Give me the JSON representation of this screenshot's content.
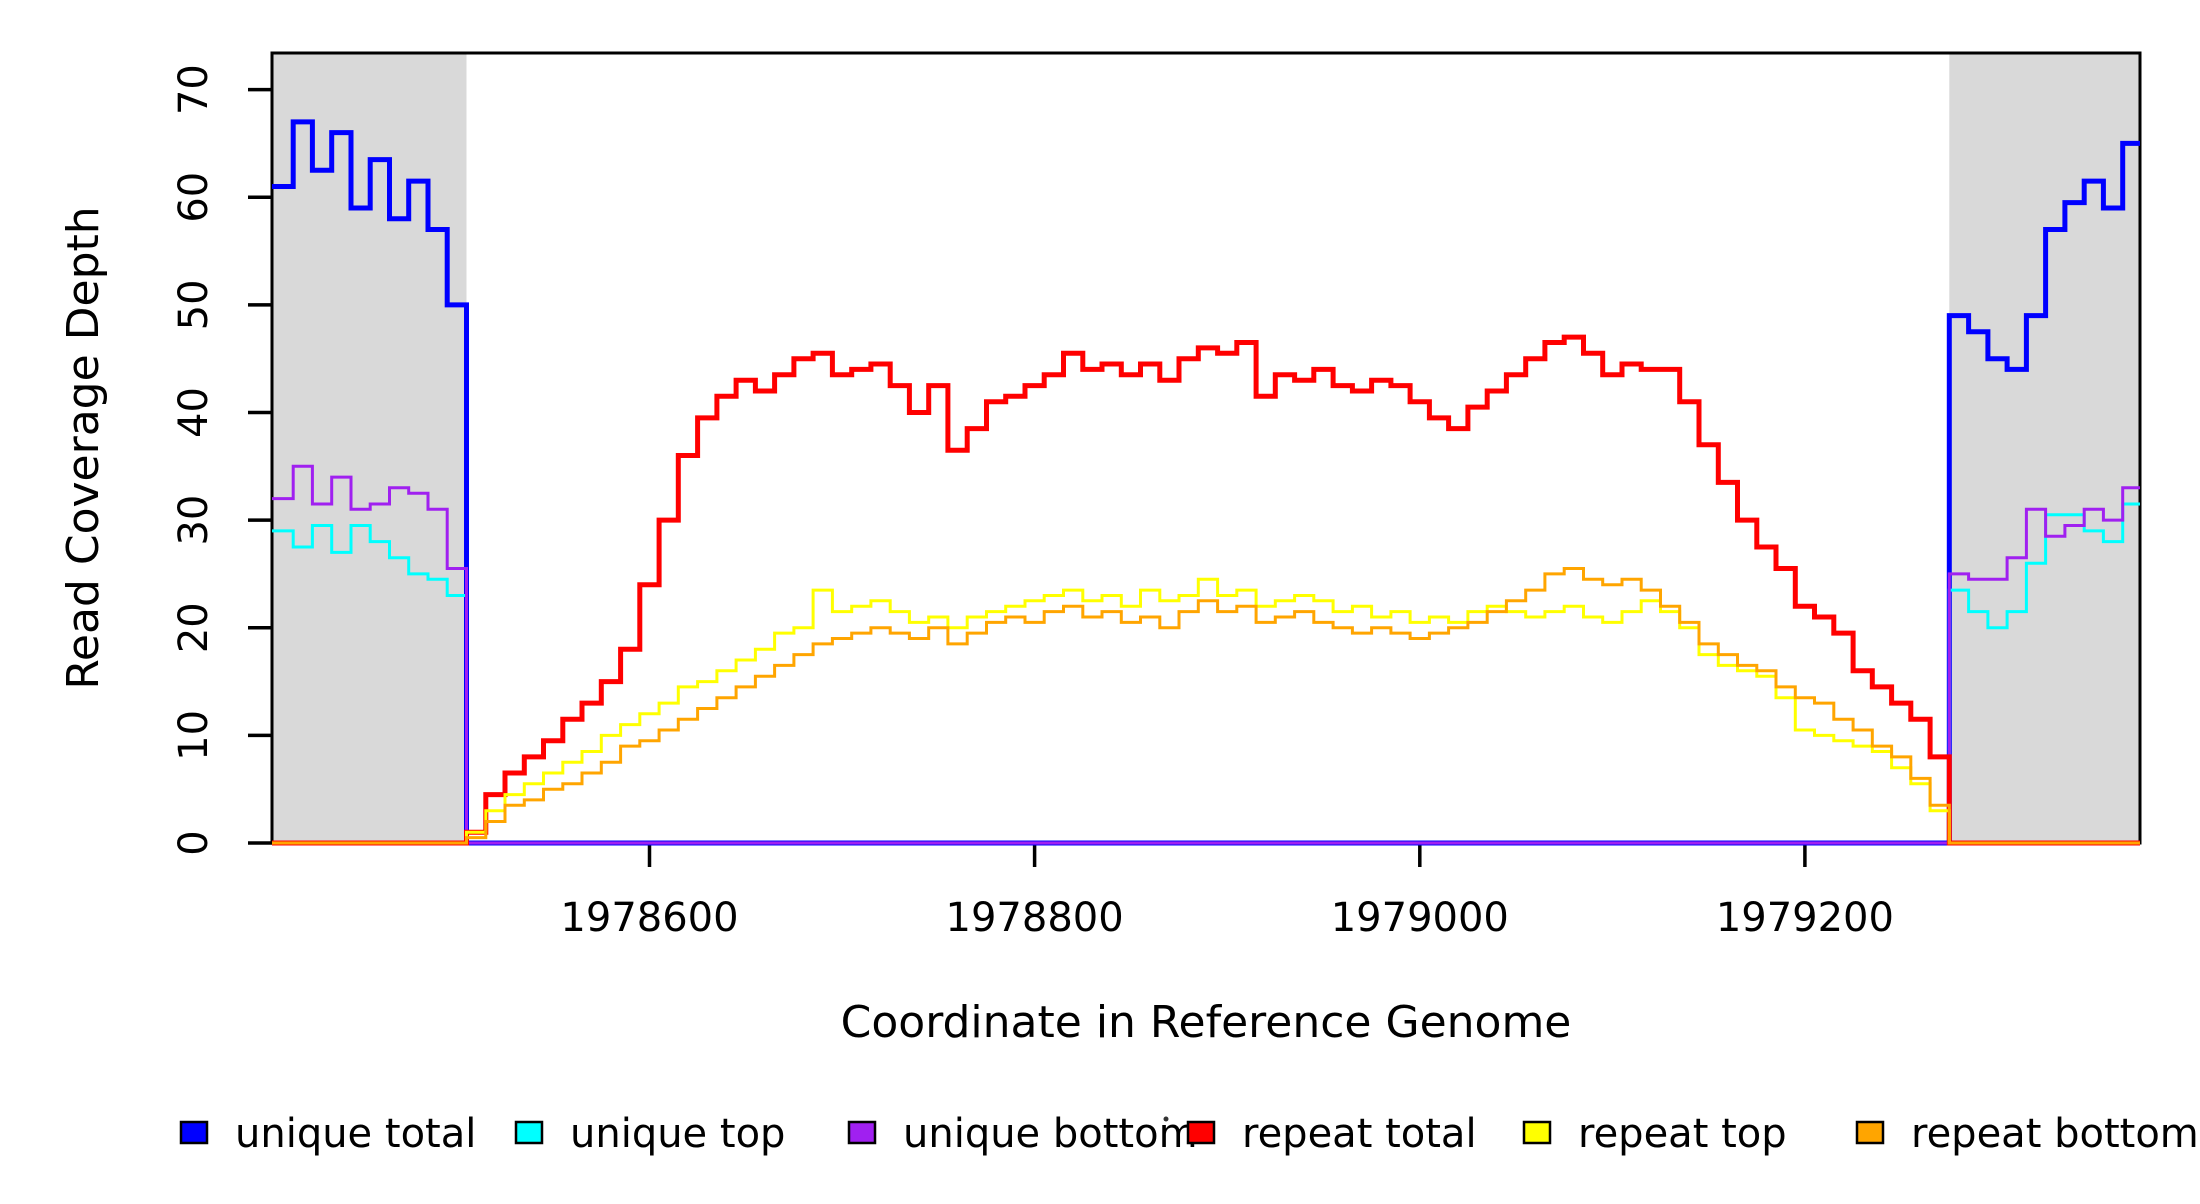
{
  "axes": {
    "x_title": "Coordinate in Reference Genome",
    "y_title": "Read Coverage Depth"
  },
  "chart_data": {
    "type": "line",
    "subtype": "step-after",
    "xlabel": "Coordinate in Reference Genome",
    "ylabel": "Read Coverage Depth",
    "xlim": [
      1978404,
      1979374
    ],
    "ylim": [
      0,
      73.4
    ],
    "x_ticks": [
      1978600,
      1978800,
      1979000,
      1979200
    ],
    "x_tick_labels": [
      "1978600",
      "1978800",
      "1979000",
      "1979200"
    ],
    "y_ticks": [
      0,
      10,
      20,
      30,
      40,
      50,
      60,
      70
    ],
    "y_tick_labels": [
      "0",
      "10",
      "20",
      "30",
      "40",
      "50",
      "60",
      "70"
    ],
    "grid": false,
    "legend_position": "bottom",
    "shaded_regions": [
      {
        "name": "unique-flank-left",
        "x0": 1978404,
        "x1": 1978505,
        "color": "#D9D9D9"
      },
      {
        "name": "unique-flank-right",
        "x0": 1979275,
        "x1": 1979374,
        "color": "#D9D9D9"
      }
    ],
    "x_start": 1978405,
    "x_step": 10,
    "n_points": 97,
    "series": [
      {
        "name": "unique total",
        "color": "#0000FF",
        "line_width": 5,
        "values": [
          61,
          67,
          62.5,
          66,
          59,
          63.5,
          58,
          61.5,
          57,
          50,
          0,
          0,
          0,
          0,
          0,
          0,
          0,
          0,
          0,
          0,
          0,
          0,
          0,
          0,
          0,
          0,
          0,
          0,
          0,
          0,
          0,
          0,
          0,
          0,
          0,
          0,
          0,
          0,
          0,
          0,
          0,
          0,
          0,
          0,
          0,
          0,
          0,
          0,
          0,
          0,
          0,
          0,
          0,
          0,
          0,
          0,
          0,
          0,
          0,
          0,
          0,
          0,
          0,
          0,
          0,
          0,
          0,
          0,
          0,
          0,
          0,
          0,
          0,
          0,
          0,
          0,
          0,
          0,
          0,
          0,
          0,
          0,
          0,
          0,
          0,
          0,
          0,
          49,
          47.5,
          45,
          44,
          49,
          57,
          59.5,
          61.5,
          59,
          65
        ]
      },
      {
        "name": "unique top",
        "color": "#00FFFF",
        "line_width": 3,
        "values": [
          29,
          27.5,
          29.5,
          27,
          29.5,
          28,
          26.5,
          25,
          24.5,
          23,
          0,
          0,
          0,
          0,
          0,
          0,
          0,
          0,
          0,
          0,
          0,
          0,
          0,
          0,
          0,
          0,
          0,
          0,
          0,
          0,
          0,
          0,
          0,
          0,
          0,
          0,
          0,
          0,
          0,
          0,
          0,
          0,
          0,
          0,
          0,
          0,
          0,
          0,
          0,
          0,
          0,
          0,
          0,
          0,
          0,
          0,
          0,
          0,
          0,
          0,
          0,
          0,
          0,
          0,
          0,
          0,
          0,
          0,
          0,
          0,
          0,
          0,
          0,
          0,
          0,
          0,
          0,
          0,
          0,
          0,
          0,
          0,
          0,
          0,
          0,
          0,
          0,
          23.5,
          21.5,
          20,
          21.5,
          26,
          30.5,
          30.5,
          29,
          28,
          31.5
        ]
      },
      {
        "name": "unique bottom",
        "color": "#A020F0",
        "line_width": 3,
        "values": [
          32,
          35,
          31.5,
          34,
          31,
          31.5,
          33,
          32.5,
          31,
          25.5,
          0,
          0,
          0,
          0,
          0,
          0,
          0,
          0,
          0,
          0,
          0,
          0,
          0,
          0,
          0,
          0,
          0,
          0,
          0,
          0,
          0,
          0,
          0,
          0,
          0,
          0,
          0,
          0,
          0,
          0,
          0,
          0,
          0,
          0,
          0,
          0,
          0,
          0,
          0,
          0,
          0,
          0,
          0,
          0,
          0,
          0,
          0,
          0,
          0,
          0,
          0,
          0,
          0,
          0,
          0,
          0,
          0,
          0,
          0,
          0,
          0,
          0,
          0,
          0,
          0,
          0,
          0,
          0,
          0,
          0,
          0,
          0,
          0,
          0,
          0,
          0,
          0,
          25,
          24.5,
          24.5,
          26.5,
          31,
          28.5,
          29.5,
          31,
          30,
          33
        ]
      },
      {
        "name": "repeat total",
        "color": "#FF0000",
        "line_width": 5,
        "values": [
          0,
          0,
          0,
          0,
          0,
          0,
          0,
          0,
          0,
          0,
          1,
          4.5,
          6.5,
          8,
          9.5,
          11.5,
          13,
          15,
          18,
          24,
          30,
          36,
          39.5,
          41.5,
          43,
          42,
          43.5,
          45,
          45.5,
          43.5,
          44,
          44.5,
          42.5,
          40,
          42.5,
          36.5,
          38.5,
          41,
          41.5,
          42.5,
          43.5,
          45.5,
          44,
          44.5,
          43.5,
          44.5,
          43,
          45,
          46,
          45.5,
          46.5,
          41.5,
          43.5,
          43,
          44,
          42.5,
          42,
          43,
          42.5,
          41,
          39.5,
          38.5,
          40.5,
          42,
          43.5,
          45,
          46.5,
          47,
          45.5,
          43.5,
          44.5,
          44,
          44,
          41,
          37,
          33.5,
          30,
          27.5,
          25.5,
          22,
          21,
          19.5,
          16,
          14.5,
          13,
          11.5,
          8,
          0,
          0,
          0,
          0,
          0,
          0,
          0,
          0,
          0,
          0
        ]
      },
      {
        "name": "repeat top",
        "color": "#FFFF00",
        "line_width": 3,
        "values": [
          0,
          0,
          0,
          0,
          0,
          0,
          0,
          0,
          0,
          0,
          1,
          3,
          4.5,
          5.5,
          6.5,
          7.5,
          8.5,
          10,
          11,
          12,
          13,
          14.5,
          15,
          16,
          17,
          18,
          19.5,
          20,
          23.5,
          21.5,
          22,
          22.5,
          21.5,
          20.5,
          21,
          20,
          21,
          21.5,
          22,
          22.5,
          23,
          23.5,
          22.5,
          23,
          22,
          23.5,
          22.5,
          23,
          24.5,
          23,
          23.5,
          22,
          22.5,
          23,
          22.5,
          21.5,
          22,
          21,
          21.5,
          20.5,
          21,
          20.5,
          21.5,
          22,
          21.5,
          21,
          21.5,
          22,
          21,
          20.5,
          21.5,
          22.5,
          21.5,
          20,
          17.5,
          16.5,
          16,
          15.5,
          13.5,
          10.5,
          10,
          9.5,
          9,
          8.5,
          7,
          5.5,
          3,
          0,
          0,
          0,
          0,
          0,
          0,
          0,
          0,
          0,
          0
        ]
      },
      {
        "name": "repeat bottom",
        "color": "#FFA500",
        "line_width": 3,
        "values": [
          0,
          0,
          0,
          0,
          0,
          0,
          0,
          0,
          0,
          0,
          0.5,
          2,
          3.5,
          4,
          5,
          5.5,
          6.5,
          7.5,
          9,
          9.5,
          10.5,
          11.5,
          12.5,
          13.5,
          14.5,
          15.5,
          16.5,
          17.5,
          18.5,
          19,
          19.5,
          20,
          19.5,
          19,
          20,
          18.5,
          19.5,
          20.5,
          21,
          20.5,
          21.5,
          22,
          21,
          21.5,
          20.5,
          21,
          20,
          21.5,
          22.5,
          21.5,
          22,
          20.5,
          21,
          21.5,
          20.5,
          20,
          19.5,
          20,
          19.5,
          19,
          19.5,
          20,
          20.5,
          21.5,
          22.5,
          23.5,
          25,
          25.5,
          24.5,
          24,
          24.5,
          23.5,
          22,
          20.5,
          18.5,
          17.5,
          16.5,
          16,
          14.5,
          13.5,
          13,
          11.5,
          10.5,
          9,
          8,
          6,
          3.5,
          0,
          0,
          0,
          0,
          0,
          0,
          0,
          0,
          0,
          0
        ]
      }
    ]
  },
  "legend": {
    "items": [
      {
        "label": "unique total",
        "color": "#0000FF"
      },
      {
        "label": "unique top",
        "color": "#00FFFF"
      },
      {
        "label": "unique bottom",
        "color": "#A020F0"
      },
      {
        "label": "repeat total",
        "color": "#FF0000"
      },
      {
        "label": "repeat top",
        "color": "#FFFF00"
      },
      {
        "label": "repeat bottom",
        "color": "#FFA500"
      }
    ],
    "stray_dot": "."
  }
}
